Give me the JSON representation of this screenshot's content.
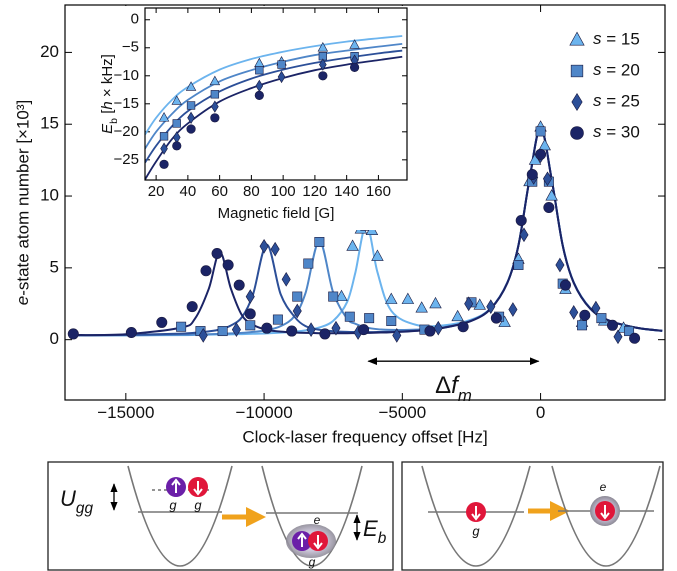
{
  "chart_data": [
    {
      "type": "scatter",
      "xlabel": "Clock-laser frequency offset [Hz]",
      "ylabel": "e-state atom number [×10³]",
      "xlim": [
        -17200,
        4500
      ],
      "ylim": [
        -4.2,
        23.3
      ],
      "xticks": [
        {
          "value": -15000,
          "label": "−15000"
        },
        {
          "value": -10000,
          "label": "−10000"
        },
        {
          "value": -5000,
          "label": "−5000"
        },
        0
      ],
      "yticks": [
        0,
        5,
        10,
        15,
        20
      ],
      "legend": "upper right",
      "fit_x": [
        -17000,
        -15000,
        -13000,
        -12500,
        -12000,
        -11600,
        -11200,
        -10800,
        -10400,
        -9900,
        -9400,
        -8900,
        -8500,
        -8000,
        -7500,
        -7000,
        -6700,
        -6300,
        -5900,
        -5400,
        -4500,
        -3500,
        -2500,
        -1800,
        -1200,
        -800,
        -400,
        0,
        400,
        800,
        1200,
        1800,
        2500,
        3500,
        4400
      ],
      "series": [
        {
          "name": "s = 15",
          "color": "#6cb4ee",
          "marker": "triangle",
          "x": [
            -7200,
            -6800,
            -6500,
            -6300,
            -6100,
            -5900,
            -5400,
            -4800,
            -4300,
            -3800,
            -3000,
            -2200,
            -1300,
            -800,
            -400,
            -200,
            0,
            150,
            400,
            900,
            1500,
            2300,
            3000
          ],
          "values": [
            3.0,
            6.5,
            7.7,
            7.9,
            7.6,
            5.8,
            2.8,
            2.8,
            2.2,
            2.5,
            1.6,
            2.4,
            1.2,
            5.6,
            11,
            12.5,
            14.8,
            13.5,
            10,
            3.5,
            1.2,
            1.3,
            0.8
          ],
          "fit": [
            0.29,
            0.3,
            0.32,
            0.33,
            0.35,
            0.36,
            0.37,
            0.39,
            0.41,
            0.44,
            0.49,
            0.56,
            0.65,
            0.85,
            1.31,
            2.61,
            4.66,
            8.03,
            4.7,
            2.01,
            1.03,
            1.0,
            1.4,
            2.2,
            4.0,
            6.6,
            11.2,
            14.8,
            11.2,
            6.6,
            4.0,
            2.2,
            1.3,
            0.81,
            0.61
          ]
        },
        {
          "name": "s = 20",
          "color": "#4f86c8",
          "marker": "square",
          "x": [
            -13000,
            -12300,
            -11500,
            -10500,
            -9500,
            -8800,
            -8400,
            -8000,
            -7500,
            -6900,
            -6200,
            -5400,
            -4200,
            -2500,
            -1500,
            -800,
            -300,
            0,
            300,
            800,
            1500,
            2200,
            3200
          ],
          "values": [
            0.9,
            0.6,
            0.6,
            1.0,
            1.4,
            3.0,
            5.3,
            6.8,
            3.0,
            1.6,
            1.5,
            1.3,
            0.7,
            2.6,
            1.6,
            5.2,
            11,
            14.5,
            11,
            3.9,
            1.0,
            1.5,
            0.6
          ],
          "fit": [
            0.29,
            0.31,
            0.34,
            0.36,
            0.38,
            0.4,
            0.44,
            0.47,
            0.54,
            0.66,
            0.94,
            1.64,
            3.25,
            6.86,
            3.28,
            1.48,
            1.11,
            0.85,
            0.73,
            0.68,
            0.7,
            0.87,
            1.34,
            2.18,
            3.98,
            6.57,
            11.17,
            14.77,
            11.17,
            6.56,
            3.96,
            2.16,
            1.31,
            0.82,
            0.62
          ]
        },
        {
          "name": "s = 25",
          "color": "#2c4f98",
          "marker": "diamond",
          "x": [
            -12200,
            -11000,
            -10500,
            -10000,
            -9600,
            -9200,
            -8800,
            -8300,
            -7400,
            -6600,
            -5200,
            -3700,
            -2600,
            -1800,
            -1000,
            -600,
            -250,
            0,
            250,
            700,
            1200,
            2000,
            2800
          ],
          "values": [
            0.3,
            0.7,
            3.0,
            6.5,
            6.3,
            4.2,
            2.0,
            0.7,
            0.8,
            0.5,
            0.3,
            0.8,
            2.5,
            2.3,
            2.1,
            7.3,
            11.3,
            12.8,
            11.2,
            5.2,
            1.9,
            2.2,
            0.2
          ],
          "fit": [
            0.3,
            0.33,
            0.42,
            0.48,
            0.58,
            0.71,
            0.99,
            1.57,
            3.15,
            6.62,
            3.16,
            1.6,
            0.94,
            0.69,
            0.59,
            0.54,
            0.53,
            0.53,
            0.53,
            0.55,
            0.63,
            0.84,
            1.32,
            2.17,
            3.97,
            6.57,
            11.17,
            14.77,
            11.17,
            6.56,
            3.96,
            2.16,
            1.31,
            0.82,
            0.62
          ]
        },
        {
          "name": "s = 30",
          "color": "#1b2466",
          "marker": "circle",
          "x": [
            -16900,
            -14800,
            -13700,
            -12600,
            -12100,
            -11700,
            -11300,
            -10900,
            -10500,
            -9900,
            -9000,
            -7800,
            -6400,
            -4000,
            -2800,
            -1600,
            -700,
            -300,
            0,
            300,
            900,
            1600,
            2600,
            3400
          ],
          "values": [
            0.4,
            0.5,
            1.2,
            2.3,
            4.8,
            6.0,
            5.2,
            3.8,
            1.8,
            0.8,
            0.6,
            0.4,
            0.7,
            0.6,
            0.9,
            1.5,
            8.3,
            11.5,
            12.9,
            9.2,
            3.8,
            1.7,
            1.0,
            0.1
          ],
          "fit": [
            0.32,
            0.38,
            0.84,
            1.46,
            3.54,
            6.1,
            3.55,
            1.7,
            1.03,
            0.68,
            0.56,
            0.5,
            0.47,
            0.45,
            0.45,
            0.45,
            0.46,
            0.47,
            0.49,
            0.52,
            0.61,
            0.83,
            1.31,
            2.16,
            3.96,
            6.56,
            11.16,
            14.76,
            11.16,
            6.56,
            3.96,
            2.16,
            1.31,
            0.82,
            0.62
          ]
        }
      ],
      "annotation": {
        "text": "Δf",
        "subscript": "m",
        "x": [
          -6300,
          0
        ],
        "y": -1.5
      }
    },
    {
      "type": "scatter",
      "xlabel": "Magnetic field [G]",
      "ylabel": [
        "E",
        "b",
        " [",
        "h",
        " × kHz]"
      ],
      "xlim": [
        13,
        178
      ],
      "ylim": [
        -28.6,
        2.1
      ],
      "xticks": [
        20,
        40,
        60,
        80,
        100,
        120,
        140,
        160
      ],
      "yticks": [
        0,
        {
          "value": -5,
          "label": "−5"
        },
        {
          "value": -10,
          "label": "−10"
        },
        {
          "value": -15,
          "label": "−15"
        },
        {
          "value": -20,
          "label": "−20"
        },
        {
          "value": -25,
          "label": "−25"
        }
      ],
      "fit_x": [
        13,
        20,
        30,
        40,
        60,
        80,
        100,
        120,
        140,
        160,
        175
      ],
      "series": [
        {
          "color": "#6cb4ee",
          "marker": "triangle",
          "x": [
            25,
            33,
            42,
            57,
            85,
            99,
            125,
            145
          ],
          "values": [
            -17.5,
            -14.5,
            -12,
            -11,
            -7.8,
            -7.5,
            -5,
            -4.5
          ],
          "fit": [
            -20.5,
            -17.5,
            -14.3,
            -12,
            -8.9,
            -7,
            -5.7,
            -4.7,
            -3.9,
            -3.3,
            -2.9
          ]
        },
        {
          "color": "#4f86c8",
          "marker": "square",
          "x": [
            25,
            33,
            42,
            57,
            85,
            99,
            125,
            145
          ],
          "values": [
            -20.8,
            -18.5,
            -15.3,
            -13.3,
            -9,
            -8,
            -6.5,
            -6.5
          ],
          "fit": [
            -23,
            -20,
            -16.8,
            -14.3,
            -11,
            -9,
            -7.5,
            -6.3,
            -5.5,
            -4.8,
            -4.3
          ]
        },
        {
          "color": "#2c4f98",
          "marker": "diamond",
          "x": [
            25,
            33,
            42,
            57,
            85,
            99,
            125,
            145
          ],
          "values": [
            -23,
            -21,
            -17.5,
            -15.5,
            -11.8,
            -10.2,
            -8,
            -7.3
          ],
          "fit": [
            -25.5,
            -22.5,
            -19,
            -16.3,
            -12.8,
            -10.5,
            -8.9,
            -7.7,
            -6.8,
            -6,
            -5.5
          ]
        },
        {
          "color": "#1b2466",
          "marker": "circle",
          "x": [
            25,
            33,
            42,
            57,
            85,
            125,
            145
          ],
          "values": [
            -25.8,
            -22.5,
            -19.5,
            -17.5,
            -13.5,
            -10,
            -8.5
          ],
          "fit": [
            -28.5,
            -25.3,
            -21.3,
            -18.5,
            -14.6,
            -12.2,
            -10.4,
            -9,
            -8,
            -7.2,
            -6.6
          ]
        }
      ]
    }
  ],
  "diagram": {
    "left": {
      "potential_label": "U",
      "potential_sub": "gg",
      "atom_labels": [
        "g",
        "g"
      ],
      "pair_label_top": "e",
      "pair_label_bottom": "g",
      "binding_label": "E",
      "binding_sub": "b"
    },
    "right": {
      "atom_label": "g",
      "final_label": "e"
    }
  }
}
